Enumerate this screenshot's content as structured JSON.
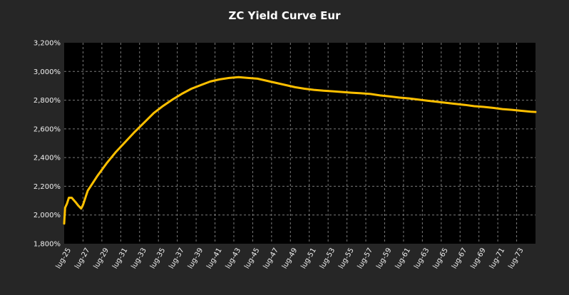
{
  "chart_data": {
    "type": "line",
    "title": "ZC Yield Curve Eur",
    "xlabel": "",
    "ylabel": "",
    "x_tick_labels": [
      "lug-25",
      "lug-27",
      "lug-29",
      "lug-31",
      "lug-33",
      "lug-35",
      "lug-37",
      "lug-39",
      "lug-41",
      "lug-43",
      "lug-45",
      "lug-47",
      "lug-49",
      "lug-51",
      "lug-53",
      "lug-55",
      "lug-57",
      "lug-59",
      "lug-61",
      "lug-63",
      "lug-65",
      "lug-67",
      "lug-69",
      "lug-71",
      "lug-73"
    ],
    "y_tick_labels": [
      "1,800%",
      "2,000%",
      "2,200%",
      "2,400%",
      "2,600%",
      "2,800%",
      "3,000%",
      "3,200%"
    ],
    "ylim": [
      1.8,
      3.2
    ],
    "xlim": [
      2025.5,
      2075.5
    ],
    "grid": true,
    "legend": "none",
    "colors": {
      "background": "#262626",
      "plot_area": "#000000",
      "line": "#FFC000",
      "grid": "#7a7a7a",
      "text": "#f0f0f0"
    },
    "series": [
      {
        "x": [
          2025.5,
          2025.6,
          2025.8,
          2026.0,
          2026.3,
          2026.7,
          2027.0,
          2027.3,
          2027.5,
          2027.8,
          2028.0,
          2028.5,
          2029.0,
          2030.0,
          2031.0,
          2032.0,
          2033.0,
          2034.0,
          2035.0,
          2036.0,
          2037.0,
          2038.0,
          2039.0,
          2040.0,
          2041.0,
          2042.0,
          2043.0,
          2044.0,
          2045.0,
          2046.0,
          2047.0,
          2048.0,
          2049.0,
          2050.0,
          2051.0,
          2052.0,
          2053.0,
          2054.0,
          2055.0,
          2056.0,
          2057.0,
          2058.0,
          2059.0,
          2060.0,
          2061.0,
          2062.0,
          2063.0,
          2064.0,
          2065.0,
          2066.0,
          2067.0,
          2068.0,
          2069.0,
          2070.0,
          2071.0,
          2072.0,
          2073.0,
          2074.0,
          2075.0,
          2075.5
        ],
        "y": [
          1.94,
          2.05,
          2.08,
          2.12,
          2.12,
          2.09,
          2.065,
          2.045,
          2.07,
          2.13,
          2.17,
          2.22,
          2.27,
          2.36,
          2.44,
          2.51,
          2.58,
          2.645,
          2.71,
          2.76,
          2.805,
          2.845,
          2.88,
          2.905,
          2.93,
          2.945,
          2.955,
          2.96,
          2.955,
          2.95,
          2.935,
          2.92,
          2.905,
          2.89,
          2.88,
          2.872,
          2.866,
          2.862,
          2.857,
          2.852,
          2.848,
          2.843,
          2.833,
          2.826,
          2.818,
          2.813,
          2.805,
          2.797,
          2.789,
          2.782,
          2.774,
          2.767,
          2.758,
          2.753,
          2.746,
          2.738,
          2.733,
          2.726,
          2.72,
          2.718
        ]
      }
    ]
  }
}
